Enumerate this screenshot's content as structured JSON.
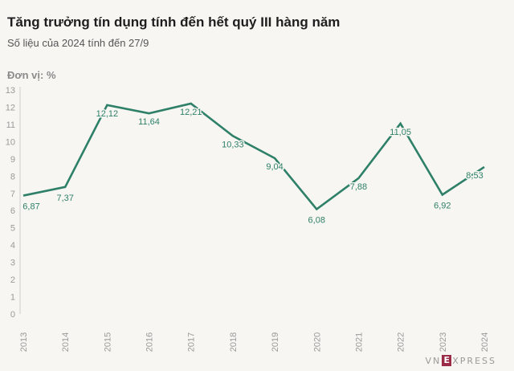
{
  "title": "Tăng trưởng tín dụng tính đến hết quý III hàng năm",
  "subtitle": "Số liệu của 2024 tính đến 27/9",
  "unit_label": "Đơn vị: %",
  "logo": {
    "prefix": "VN",
    "mark": "E",
    "suffix": "XPRESS"
  },
  "colors": {
    "line": "#2e8068",
    "label": "#2e8068",
    "axis_text": "#9a9a9a",
    "grid": "#cfcfcf",
    "background": "#f8f6f3"
  },
  "chart_data": {
    "type": "line",
    "title": "Tăng trưởng tín dụng tính đến hết quý III hàng năm",
    "ylabel": "Đơn vị: %",
    "categories": [
      "2013",
      "2014",
      "2015",
      "2016",
      "2017",
      "2018",
      "2019",
      "2020",
      "2021",
      "2022",
      "2023",
      "2024"
    ],
    "series": [
      {
        "values": [
          6.87,
          7.37,
          12.12,
          11.64,
          12.21,
          10.33,
          9.04,
          6.08,
          7.88,
          11.05,
          6.92,
          8.53
        ],
        "labels": [
          "6,87",
          "7,37",
          "12,12",
          "11,64",
          "12,21",
          "10,33",
          "9,04",
          "6,08",
          "7,88",
          "11,05",
          "6,92",
          "8,53"
        ]
      }
    ],
    "yticks": [
      "0",
      "1",
      "2",
      "3",
      "4",
      "5",
      "6",
      "7",
      "8",
      "9",
      "10",
      "11",
      "12",
      "13"
    ],
    "ylim": [
      0,
      13
    ],
    "grid": false
  }
}
